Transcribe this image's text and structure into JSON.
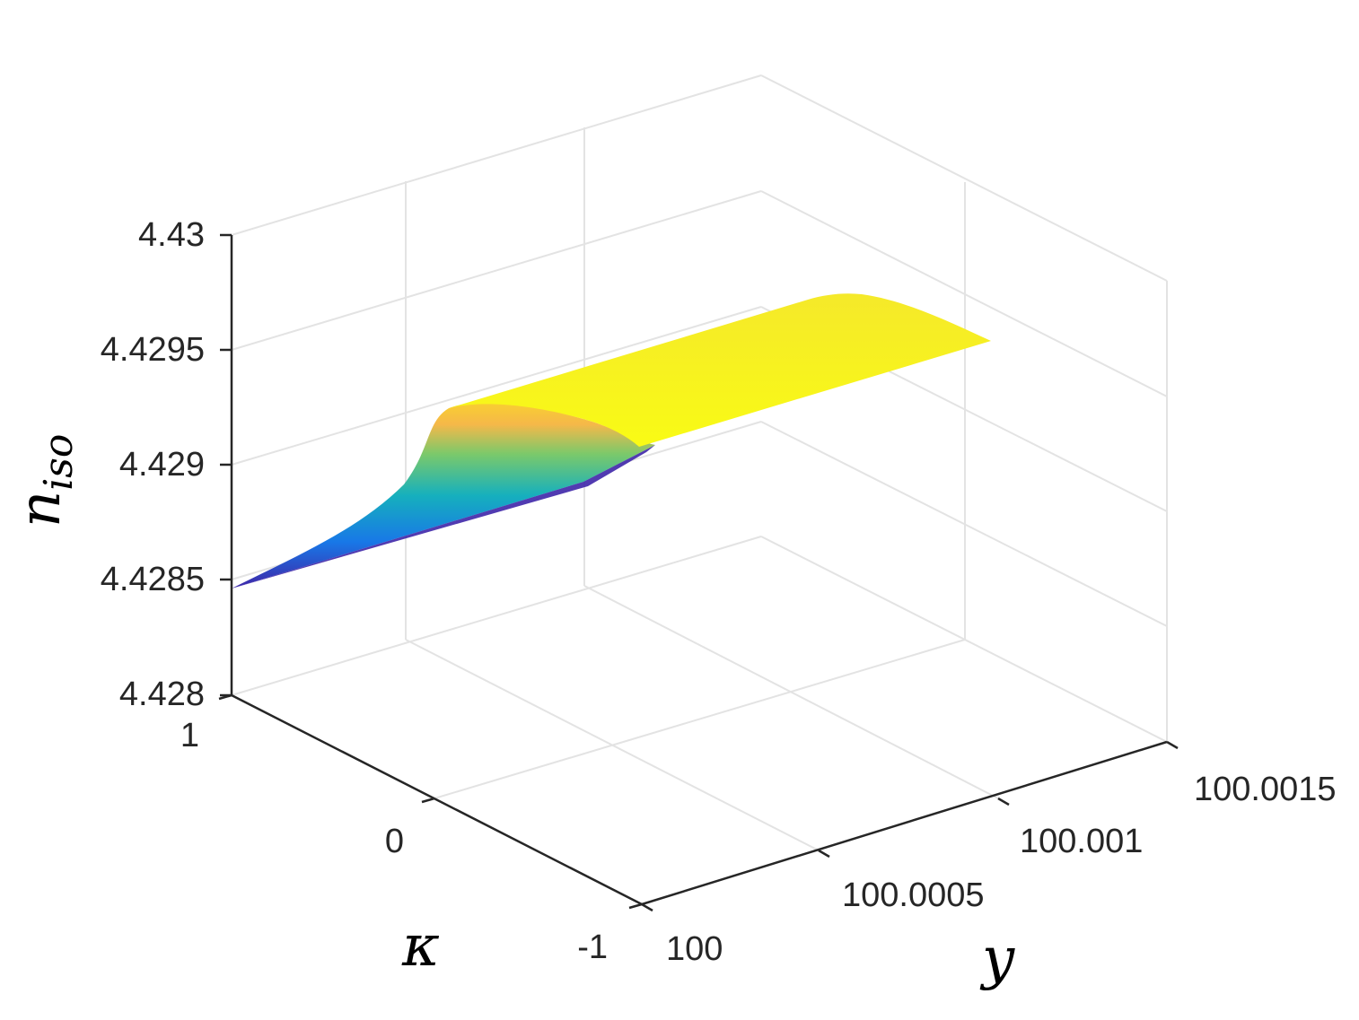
{
  "chart_data": {
    "type": "surface",
    "title": "",
    "xlabel": "y",
    "ylabel": "κ",
    "zlabel": "n",
    "zlabel_subscript": "iso",
    "x_ticks": [
      "100",
      "100.0005",
      "100.001",
      "100.0015"
    ],
    "y_ticks": [
      "-1",
      "0",
      "1"
    ],
    "z_ticks": [
      "4.428",
      "4.4285",
      "4.429",
      "4.4295",
      "4.43"
    ],
    "xlim": [
      100,
      100.0015
    ],
    "ylim": [
      -1,
      1
    ],
    "zlim": [
      4.428,
      4.43
    ],
    "grid": true,
    "colormap": [
      "#3e26a8",
      "#1878e7",
      "#16b0bd",
      "#7ac96b",
      "#f5b849",
      "#f9fb15"
    ],
    "surface": {
      "y_values": [
        100,
        100.0005
      ],
      "kappa_values": [
        -1,
        1
      ],
      "n_iso_plateau": 4.42946,
      "n_iso_min": 4.42847,
      "description_points": [
        {
          "y": 100,
          "kappa": 1,
          "n_iso": 4.42847
        },
        {
          "y": 100.0005,
          "kappa": 1,
          "n_iso": 4.42939
        },
        {
          "y": 100.0005,
          "kappa": -1,
          "n_iso": 4.42893
        },
        {
          "y": 100.0015,
          "kappa": 1,
          "n_iso": 4.42974
        },
        {
          "y": 100.0015,
          "kappa": -1,
          "n_iso": 4.42946
        }
      ]
    }
  }
}
